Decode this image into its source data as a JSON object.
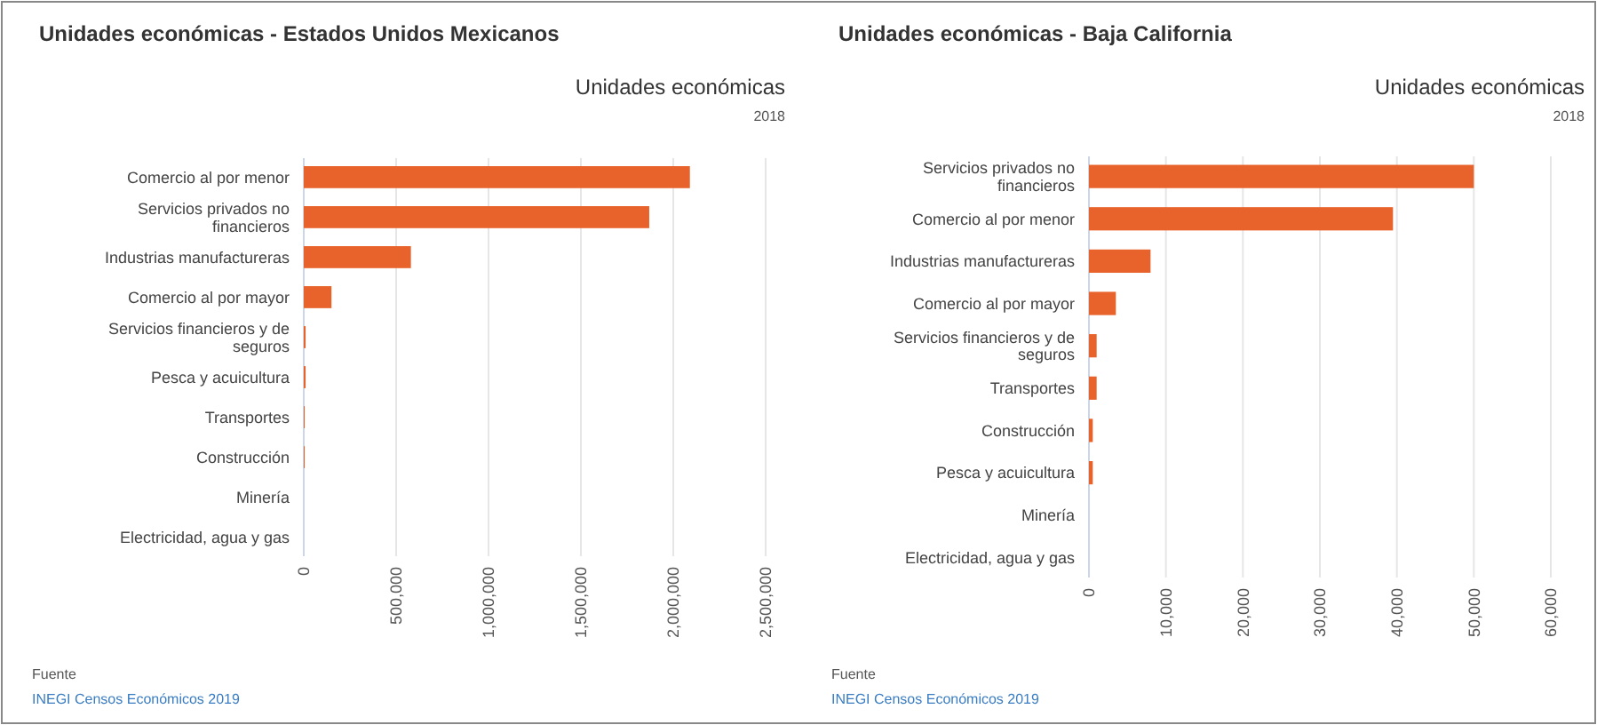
{
  "chart_data": [
    {
      "type": "bar",
      "orientation": "horizontal",
      "title": "Unidades económicas - Estados Unidos Mexicanos",
      "subtitle": "Unidades económicas",
      "annotations": [
        "2018",
        "Fuente",
        "INEGI Censos Económicos 2019"
      ],
      "categories": [
        "Comercio al por menor",
        "Servicios privados no financieros",
        "Industrias manufactureras",
        "Comercio al por mayor",
        "Servicios financieros y de seguros",
        "Pesca y acuicultura",
        "Transportes",
        "Construcción",
        "Minería",
        "Electricidad, agua y gas"
      ],
      "values": [
        2090000,
        1870000,
        580000,
        150000,
        10000,
        10000,
        5000,
        5000,
        0,
        0
      ],
      "color": "#e8632b",
      "xlim": [
        0,
        2500000
      ],
      "xticks": [
        0,
        {
          "value": 500000,
          "label": "500,000"
        },
        {
          "value": 1000000,
          "label": "1,000,000"
        },
        {
          "value": 1500000,
          "label": "1,500,000"
        },
        {
          "value": 2000000,
          "label": "2,000,000"
        },
        {
          "value": 2500000,
          "label": "2,500,000"
        }
      ],
      "grid": "x"
    },
    {
      "type": "bar",
      "orientation": "horizontal",
      "title": "Unidades económicas - Baja California",
      "subtitle": "Unidades económicas",
      "annotations": [
        "2018",
        "Fuente",
        "INEGI Censos Económicos 2019"
      ],
      "categories": [
        "Servicios privados no financieros",
        "Comercio al por menor",
        "Industrias manufactureras",
        "Comercio al por mayor",
        "Servicios financieros y de seguros",
        "Transportes",
        "Construcción",
        "Pesca y acuicultura",
        "Minería",
        "Electricidad, agua y gas"
      ],
      "values": [
        50000,
        39500,
        8000,
        3500,
        1000,
        1000,
        500,
        500,
        0,
        0
      ],
      "color": "#e8632b",
      "xlim": [
        0,
        60000
      ],
      "xticks": [
        0,
        {
          "value": 10000,
          "label": "10,000"
        },
        {
          "value": 20000,
          "label": "20,000"
        },
        {
          "value": 30000,
          "label": "30,000"
        },
        {
          "value": 40000,
          "label": "40,000"
        },
        {
          "value": 50000,
          "label": "50,000"
        },
        {
          "value": 60000,
          "label": "60,000"
        }
      ],
      "grid": "x"
    }
  ]
}
